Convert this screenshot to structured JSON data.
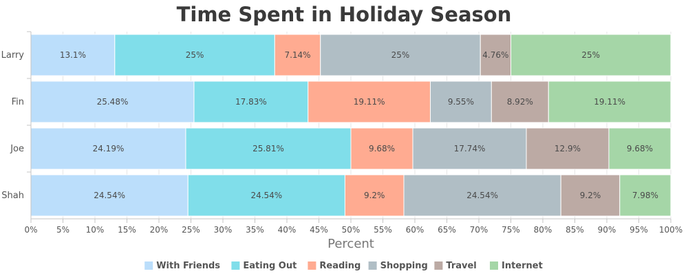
{
  "chart_data": {
    "type": "bar",
    "orientation": "horizontal",
    "stacking": "percent",
    "title": "Time Spent in Holiday Season",
    "xlabel": "Percent",
    "ylabel": "",
    "xlim": [
      0,
      100
    ],
    "x_ticks": [
      "0%",
      "5%",
      "10%",
      "15%",
      "20%",
      "25%",
      "30%",
      "35%",
      "40%",
      "45%",
      "50%",
      "55%",
      "60%",
      "65%",
      "70%",
      "75%",
      "80%",
      "85%",
      "90%",
      "95%",
      "100%"
    ],
    "categories": [
      "Larry",
      "Fin",
      "Joe",
      "Shah"
    ],
    "series": [
      {
        "name": "With Friends",
        "color": "#BBDEFB",
        "values": [
          13.1,
          25.48,
          24.19,
          24.54
        ],
        "labels": [
          "13.1%",
          "25.48%",
          "24.19%",
          "24.54%"
        ]
      },
      {
        "name": "Eating Out",
        "color": "#80DEEA",
        "values": [
          25,
          17.83,
          25.81,
          24.54
        ],
        "labels": [
          "25%",
          "17.83%",
          "25.81%",
          "24.54%"
        ]
      },
      {
        "name": "Reading",
        "color": "#FFAB91",
        "values": [
          7.14,
          19.11,
          9.68,
          9.2
        ],
        "labels": [
          "7.14%",
          "19.11%",
          "9.68%",
          "9.2%"
        ]
      },
      {
        "name": "Shopping",
        "color": "#B0BEC5",
        "values": [
          25,
          9.55,
          17.74,
          24.54
        ],
        "labels": [
          "25%",
          "9.55%",
          "17.74%",
          "24.54%"
        ]
      },
      {
        "name": "Travel",
        "color": "#BCAAA4",
        "values": [
          4.76,
          8.92,
          12.9,
          9.2
        ],
        "labels": [
          "4.76%",
          "8.92%",
          "12.9%",
          "9.2%"
        ]
      },
      {
        "name": "Internet",
        "color": "#A5D6A7",
        "values": [
          25,
          19.11,
          9.68,
          7.98
        ],
        "labels": [
          "25%",
          "19.11%",
          "9.68%",
          "7.98%"
        ]
      }
    ],
    "legend_position": "bottom-center",
    "grid": true
  }
}
